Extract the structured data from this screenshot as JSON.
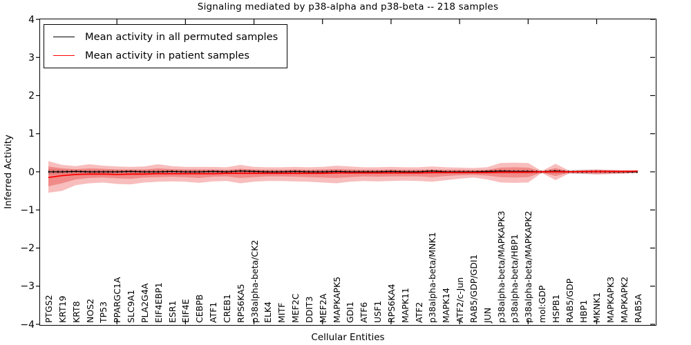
{
  "figure": {
    "background": "#ffffff",
    "spine_color": "#000000"
  },
  "chart_data": {
    "type": "line",
    "title": "Signaling mediated by p38-alpha and p38-beta -- 218 samples",
    "xlabel": "Cellular Entities",
    "ylabel": "Inferred Activity",
    "ylim": [
      -4,
      4
    ],
    "yticks": [
      4,
      3,
      2,
      1,
      0,
      -1,
      -2,
      -3,
      -4
    ],
    "ytick_labels": [
      "4",
      "3",
      "2",
      "1",
      "0",
      "−1",
      "−2",
      "−3",
      "−4"
    ],
    "xtick_interval": 5,
    "grid": false,
    "legend_position": "upper left",
    "categories": [
      "PTGS2",
      "KRT19",
      "KRT8",
      "NOS2",
      "TP53",
      "PPARGC1A",
      "SLC9A1",
      "PLA2G4A",
      "EIF4EBP1",
      "ESR1",
      "EIF4E",
      "CEBPB",
      "ATF1",
      "CREB1",
      "RPS6KA5",
      "p38alpha-beta/CK2",
      "ELK4",
      "MITF",
      "MEF2C",
      "DDIT3",
      "MEF2A",
      "MAPKAPK5",
      "GDI1",
      "ATF6",
      "USF1",
      "RPS6KA4",
      "MAPK11",
      "ATF2",
      "p38alpha-beta/MNK1",
      "MAPK14",
      "ATF2/c-Jun",
      "RAB5/GDP/GDI1",
      "JUN",
      "p38alpha-beta/MAPKAPK3",
      "p38alpha-beta/HBP1",
      "p38alpha-beta/MAPKAPK2",
      "mol:GDP",
      "HSPB1",
      "RAB5/GDP",
      "HBP1",
      "MKNK1",
      "MAPKAPK3",
      "MAPKAPK2",
      "RAB5A"
    ],
    "series": [
      {
        "name": "Mean activity in all permuted samples",
        "color": "#000000",
        "values": [
          0.0,
          0.0,
          0.01,
          0.0,
          0.0,
          0.0,
          0.01,
          0.0,
          0.0,
          0.01,
          0.0,
          0.0,
          0.01,
          0.0,
          0.02,
          0.01,
          0.0,
          0.0,
          0.01,
          0.0,
          0.0,
          0.01,
          0.0,
          0.0,
          0.0,
          0.01,
          0.0,
          0.0,
          0.02,
          0.0,
          0.0,
          0.0,
          0.01,
          0.02,
          0.01,
          0.01,
          0.0,
          0.02,
          0.0,
          0.0,
          0.01,
          0.0,
          0.0,
          0.0
        ]
      },
      {
        "name": "Mean activity in patient samples",
        "color": "#ff0000",
        "values": [
          -0.15,
          -0.1,
          -0.07,
          -0.06,
          -0.06,
          -0.07,
          -0.06,
          -0.06,
          -0.05,
          -0.05,
          -0.05,
          -0.05,
          -0.05,
          -0.04,
          -0.04,
          -0.04,
          -0.04,
          -0.04,
          -0.04,
          -0.04,
          -0.04,
          -0.03,
          -0.03,
          -0.03,
          -0.03,
          -0.03,
          -0.03,
          -0.03,
          -0.02,
          -0.02,
          -0.02,
          -0.02,
          -0.02,
          -0.01,
          -0.01,
          -0.01,
          0.0,
          0.0,
          0.0,
          0.01,
          0.01,
          0.01,
          0.01,
          0.02
        ]
      }
    ],
    "bands": [
      {
        "name": "permuted-sample-range",
        "color": "rgba(150,150,150,0.32)",
        "upper": [
          0.08,
          0.06,
          0.05,
          0.05,
          0.05,
          0.05,
          0.05,
          0.05,
          0.05,
          0.05,
          0.05,
          0.05,
          0.05,
          0.05,
          0.05,
          0.05,
          0.05,
          0.05,
          0.05,
          0.05,
          0.05,
          0.05,
          0.05,
          0.05,
          0.05,
          0.05,
          0.05,
          0.05,
          0.05,
          0.05,
          0.05,
          0.05,
          0.05,
          0.05,
          0.05,
          0.05,
          0.04,
          0.05,
          0.05,
          0.06,
          0.06,
          0.05,
          0.04,
          0.03
        ],
        "lower": [
          -0.08,
          -0.06,
          -0.05,
          -0.05,
          -0.05,
          -0.05,
          -0.05,
          -0.05,
          -0.05,
          -0.05,
          -0.05,
          -0.05,
          -0.05,
          -0.05,
          -0.05,
          -0.05,
          -0.05,
          -0.05,
          -0.05,
          -0.05,
          -0.05,
          -0.05,
          -0.05,
          -0.05,
          -0.05,
          -0.05,
          -0.05,
          -0.05,
          -0.05,
          -0.05,
          -0.05,
          -0.05,
          -0.05,
          -0.05,
          -0.05,
          -0.05,
          -0.04,
          -0.05,
          -0.05,
          -0.06,
          -0.06,
          -0.05,
          -0.04,
          -0.03
        ]
      },
      {
        "name": "patient-outer-band",
        "color": "rgba(228,40,38,0.30)",
        "upper": [
          0.28,
          0.18,
          0.15,
          0.2,
          0.16,
          0.14,
          0.13,
          0.14,
          0.2,
          0.15,
          0.13,
          0.13,
          0.13,
          0.12,
          0.18,
          0.13,
          0.12,
          0.12,
          0.13,
          0.12,
          0.13,
          0.16,
          0.14,
          0.12,
          0.12,
          0.13,
          0.12,
          0.12,
          0.14,
          0.12,
          0.11,
          0.1,
          0.12,
          0.23,
          0.24,
          0.23,
          0.02,
          0.21,
          0.03,
          0.04,
          0.06,
          0.05,
          0.04,
          0.03
        ],
        "lower": [
          -0.55,
          -0.5,
          -0.35,
          -0.3,
          -0.28,
          -0.32,
          -0.33,
          -0.28,
          -0.26,
          -0.25,
          -0.26,
          -0.29,
          -0.25,
          -0.24,
          -0.3,
          -0.26,
          -0.24,
          -0.24,
          -0.25,
          -0.26,
          -0.28,
          -0.3,
          -0.26,
          -0.24,
          -0.25,
          -0.24,
          -0.23,
          -0.24,
          -0.26,
          -0.22,
          -0.18,
          -0.15,
          -0.2,
          -0.28,
          -0.29,
          -0.28,
          -0.03,
          -0.22,
          -0.04,
          -0.05,
          -0.07,
          -0.06,
          -0.05,
          -0.03
        ]
      },
      {
        "name": "patient-inner-band",
        "color": "rgba(228,40,38,0.34)",
        "upper": [
          0.14,
          0.09,
          0.07,
          0.09,
          0.08,
          0.06,
          0.06,
          0.06,
          0.09,
          0.07,
          0.06,
          0.06,
          0.06,
          0.05,
          0.08,
          0.06,
          0.05,
          0.05,
          0.06,
          0.05,
          0.06,
          0.07,
          0.06,
          0.05,
          0.05,
          0.06,
          0.05,
          0.05,
          0.06,
          0.05,
          0.05,
          0.04,
          0.05,
          0.11,
          0.12,
          0.11,
          0.01,
          0.1,
          0.01,
          0.02,
          0.03,
          0.02,
          0.02,
          0.01
        ],
        "lower": [
          -0.38,
          -0.3,
          -0.2,
          -0.16,
          -0.15,
          -0.17,
          -0.18,
          -0.15,
          -0.14,
          -0.13,
          -0.14,
          -0.16,
          -0.13,
          -0.12,
          -0.16,
          -0.14,
          -0.12,
          -0.12,
          -0.13,
          -0.14,
          -0.15,
          -0.16,
          -0.14,
          -0.12,
          -0.13,
          -0.12,
          -0.12,
          -0.12,
          -0.14,
          -0.11,
          -0.09,
          -0.08,
          -0.1,
          -0.14,
          -0.15,
          -0.14,
          -0.02,
          -0.11,
          -0.02,
          -0.03,
          -0.04,
          -0.03,
          -0.03,
          -0.02
        ]
      }
    ]
  },
  "legend": {
    "items": [
      {
        "label": "Mean activity in all permuted samples",
        "color": "#000000"
      },
      {
        "label": "Mean activity in patient samples",
        "color": "#ff0000"
      }
    ]
  }
}
